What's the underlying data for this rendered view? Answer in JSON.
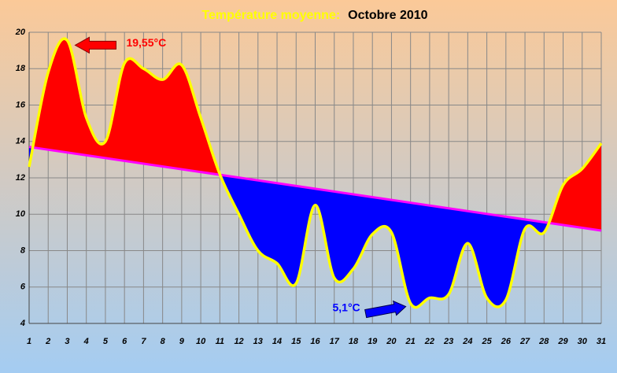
{
  "chart_data": {
    "type": "line",
    "title": "Température moyenne:",
    "subtitle": "Octobre 2010",
    "x": [
      1,
      2,
      3,
      4,
      5,
      6,
      7,
      8,
      9,
      10,
      11,
      12,
      13,
      14,
      15,
      16,
      17,
      18,
      19,
      20,
      21,
      22,
      23,
      24,
      25,
      26,
      27,
      28,
      29,
      30,
      31
    ],
    "values": [
      12.6,
      17.8,
      19.55,
      15.3,
      14.0,
      18.3,
      18.0,
      17.4,
      18.2,
      15.3,
      12.2,
      10.0,
      8.0,
      7.3,
      6.2,
      10.5,
      6.5,
      7.0,
      8.9,
      9.0,
      5.1,
      5.4,
      5.6,
      8.4,
      5.4,
      5.3,
      9.2,
      9.0,
      11.6,
      12.5,
      13.9
    ],
    "color": "#ffff00",
    "trend_x": [
      1,
      31
    ],
    "trend_values": [
      13.7,
      9.1
    ],
    "trend_color": "#ff00ff",
    "above_color": "#ff0000",
    "below_color": "#0000ff",
    "xlim": [
      1,
      31
    ],
    "xticks": [
      1,
      2,
      3,
      4,
      5,
      6,
      7,
      8,
      9,
      10,
      11,
      12,
      13,
      14,
      15,
      16,
      17,
      18,
      19,
      20,
      21,
      22,
      23,
      24,
      25,
      26,
      27,
      28,
      29,
      30,
      31
    ],
    "ylim": [
      4,
      20
    ],
    "yticks": [
      4,
      6,
      8,
      10,
      12,
      14,
      16,
      18,
      20
    ],
    "grid": true,
    "annotations": [
      {
        "text": "19,55°C",
        "x": 3,
        "y": 19.55,
        "color": "#ff0000"
      },
      {
        "text": "5,1°C",
        "x": 21,
        "y": 5.1,
        "color": "#0000ff"
      }
    ]
  }
}
